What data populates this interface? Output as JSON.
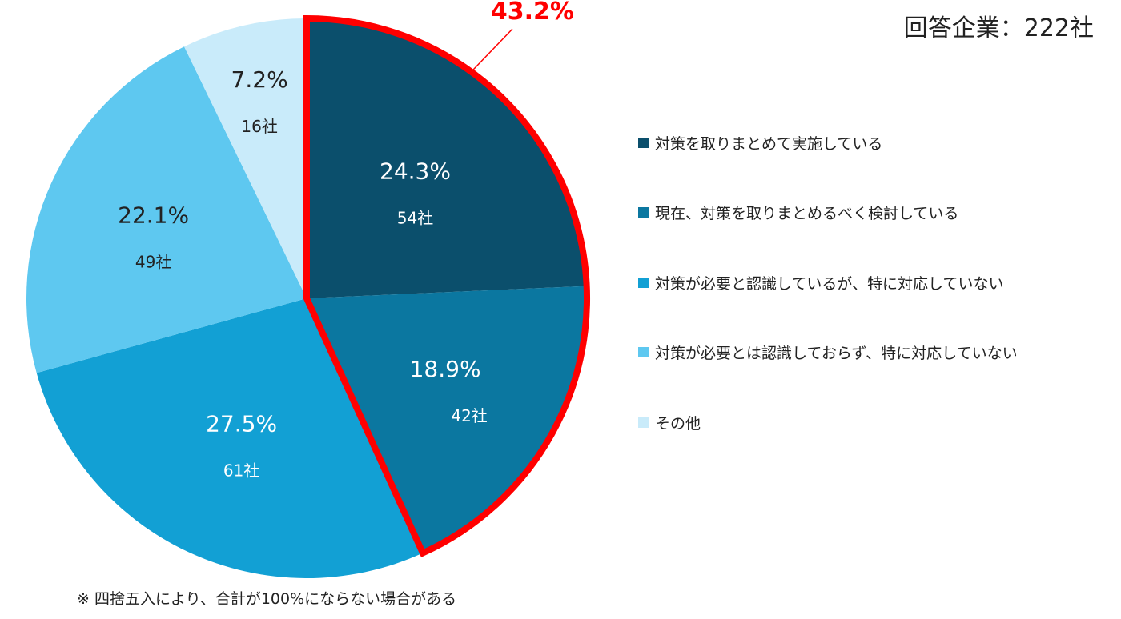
{
  "header": {
    "respondents": "回答企業：222社"
  },
  "footnote": "※ 四捨五入により、合計が100%にならない場合がある",
  "highlight": {
    "label": "43.2%",
    "color": "#ff0000"
  },
  "chart_data": {
    "type": "pie",
    "title": "",
    "start_angle_deg": 0,
    "direction": "clockwise",
    "legend_position": "right",
    "slices": [
      {
        "name": "対策を取りまとめて実施している",
        "percent": 24.3,
        "percent_label": "24.3%",
        "count_label": "54社",
        "color": "#0b4f6c",
        "label_color": "#ffffff"
      },
      {
        "name": "現在、対策を取りまとめるべく検討している",
        "percent": 18.9,
        "percent_label": "18.9%",
        "count_label": "42社",
        "color": "#0b77a0",
        "label_color": "#ffffff"
      },
      {
        "name": "対策が必要と認識しているが、特に対応していない",
        "percent": 27.5,
        "percent_label": "27.5%",
        "count_label": "61社",
        "color": "#12a0d4",
        "label_color": "#ffffff"
      },
      {
        "name": "対策が必要とは認識しておらず、特に対応していない",
        "percent": 22.1,
        "percent_label": "22.1%",
        "count_label": "49社",
        "color": "#5ec8f0",
        "label_color": "#222222"
      },
      {
        "name": "その他",
        "percent": 7.2,
        "percent_label": "7.2%",
        "count_label": "16社",
        "color": "#c9ebfa",
        "label_color": "#222222"
      }
    ]
  }
}
